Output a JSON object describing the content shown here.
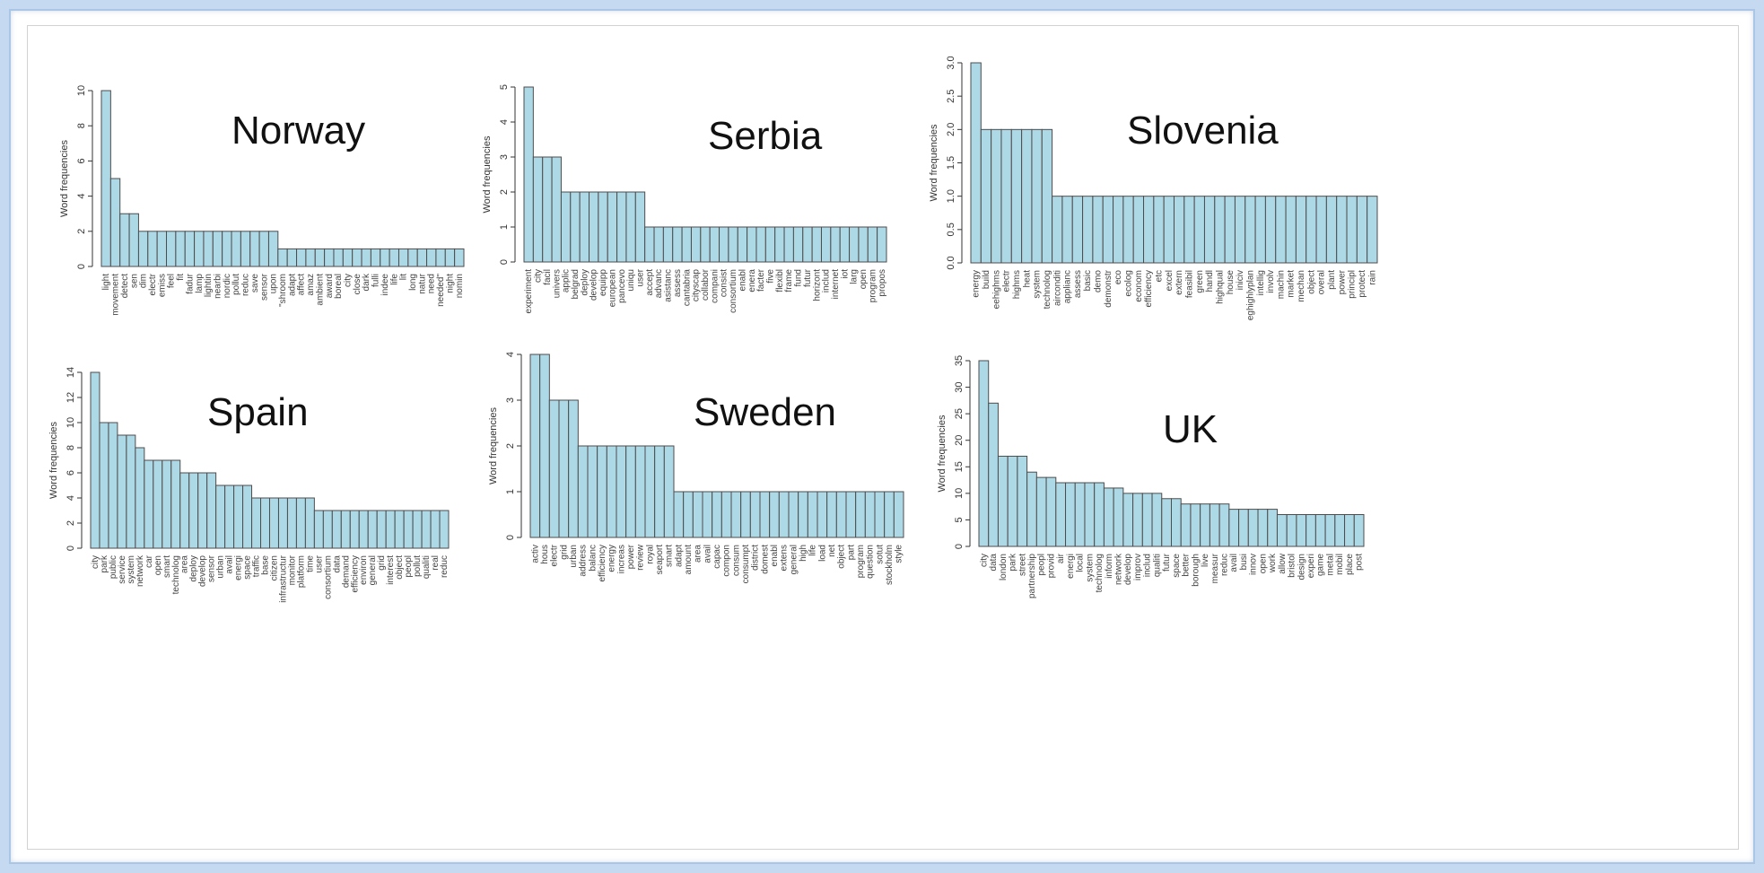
{
  "chart_data": [
    {
      "type": "bar",
      "title": "Norway",
      "ylabel": "Word frequencies",
      "yticks": [
        0,
        2,
        4,
        6,
        8,
        10
      ],
      "ylim": [
        0,
        10
      ],
      "categories": [
        "light",
        "movement",
        "detect",
        "sen",
        "dim",
        "electr",
        "emiss",
        "feel",
        "fit",
        "fadur",
        "lamp",
        "lightin",
        "nearbi",
        "nordic",
        "pollut",
        "reduc",
        "save",
        "sensor",
        "upon",
        "\"shroom",
        "adapt",
        "affect",
        "amaz",
        "ambient",
        "award",
        "boreal",
        "city",
        "close",
        "dark",
        "fulli",
        "indee",
        "life",
        "lit",
        "long",
        "natur",
        "need",
        "needed\"",
        "night",
        "nomin"
      ],
      "values": [
        10,
        5,
        3,
        3,
        2,
        2,
        2,
        2,
        2,
        2,
        2,
        2,
        2,
        2,
        2,
        2,
        2,
        2,
        2,
        1,
        1,
        1,
        1,
        1,
        1,
        1,
        1,
        1,
        1,
        1,
        1,
        1,
        1,
        1,
        1,
        1,
        1,
        1,
        1
      ]
    },
    {
      "type": "bar",
      "title": "Serbia",
      "ylabel": "Word frequencies",
      "yticks": [
        0,
        1,
        2,
        3,
        4,
        5
      ],
      "ylim": [
        0,
        5
      ],
      "categories": [
        "experiment",
        "city",
        "facil",
        "univers",
        "applic",
        "belgrad",
        "deploy",
        "develop",
        "equipp",
        "european",
        "pancevo",
        "uniqu",
        "user",
        "accept",
        "advanc",
        "asistanc",
        "assess",
        "cantabria",
        "cityscap",
        "collabor",
        "compani",
        "consist",
        "consortium",
        "enabl",
        "enera",
        "facter",
        "five",
        "flexibl",
        "frame",
        "fund",
        "futur",
        "horizont",
        "includ",
        "internet",
        "iot",
        "larg",
        "open",
        "program",
        "propos"
      ],
      "values": [
        5,
        3,
        3,
        3,
        2,
        2,
        2,
        2,
        2,
        2,
        2,
        2,
        2,
        1,
        1,
        1,
        1,
        1,
        1,
        1,
        1,
        1,
        1,
        1,
        1,
        1,
        1,
        1,
        1,
        1,
        1,
        1,
        1,
        1,
        1,
        1,
        1,
        1,
        1
      ]
    },
    {
      "type": "bar",
      "title": "Slovenia",
      "ylabel": "Word frequencies",
      "yticks": [
        "0.0",
        "0.5",
        "1.0",
        "1.5",
        "2.0",
        "2.5",
        "3.0"
      ],
      "ylim": [
        0,
        3
      ],
      "categories": [
        "energy",
        "build",
        "eehighms",
        "electr",
        "highms",
        "heat",
        "system",
        "technolog",
        "airconditi",
        "applianc",
        "assess",
        "basic",
        "demo",
        "demonstr",
        "eco",
        "ecolog",
        "econom",
        "efficiency",
        "etc",
        "excel",
        "extern",
        "feasibil",
        "green",
        "handl",
        "highqual",
        "house",
        "iniciv",
        "eghighlyplan",
        "intellig",
        "involv",
        "machin",
        "market",
        "mechan",
        "object",
        "overal",
        "plant",
        "power",
        "principl",
        "protect",
        "rain"
      ],
      "values": [
        3,
        2,
        2,
        2,
        2,
        2,
        2,
        2,
        1,
        1,
        1,
        1,
        1,
        1,
        1,
        1,
        1,
        1,
        1,
        1,
        1,
        1,
        1,
        1,
        1,
        1,
        1,
        1,
        1,
        1,
        1,
        1,
        1,
        1,
        1,
        1,
        1,
        1,
        1,
        1
      ]
    },
    {
      "type": "bar",
      "title": "Spain",
      "ylabel": "Word frequencies",
      "yticks": [
        0,
        2,
        4,
        6,
        8,
        10,
        12,
        14
      ],
      "ylim": [
        0,
        14
      ],
      "categories": [
        "city",
        "park",
        "public",
        "service",
        "system",
        "network",
        "car",
        "open",
        "smart",
        "technolog",
        "area",
        "deploy",
        "develop",
        "sensor",
        "urban",
        "avail",
        "energi",
        "space",
        "traffic",
        "base",
        "citizen",
        "infrastructur",
        "monitor",
        "platform",
        "time",
        "user",
        "consortium",
        "data",
        "demand",
        "efficiency",
        "environ",
        "general",
        "grid",
        "interest",
        "object",
        "peopl",
        "pollut",
        "qualiti",
        "real",
        "reduc"
      ],
      "values": [
        14,
        10,
        10,
        9,
        9,
        8,
        7,
        7,
        7,
        7,
        6,
        6,
        6,
        6,
        5,
        5,
        5,
        5,
        4,
        4,
        4,
        4,
        4,
        4,
        4,
        3,
        3,
        3,
        3,
        3,
        3,
        3,
        3,
        3,
        3,
        3,
        3,
        3,
        3,
        3
      ]
    },
    {
      "type": "bar",
      "title": "Sweden",
      "ylabel": "Word frequencies",
      "yticks": [
        0,
        1,
        2,
        3,
        4
      ],
      "ylim": [
        0,
        4
      ],
      "categories": [
        "activ",
        "hous",
        "electr",
        "grid",
        "urban",
        "address",
        "balanc",
        "efficiency",
        "energy",
        "increas",
        "power",
        "review",
        "royal",
        "seaport",
        "smart",
        "adapt",
        "amount",
        "area",
        "avail",
        "capac",
        "compon",
        "consum",
        "consumpt",
        "district",
        "domest",
        "enabl",
        "extens",
        "general",
        "high",
        "life",
        "load",
        "net",
        "object",
        "part",
        "program",
        "question",
        "sotut",
        "stockholm",
        "style"
      ],
      "values": [
        4,
        4,
        3,
        3,
        3,
        2,
        2,
        2,
        2,
        2,
        2,
        2,
        2,
        2,
        2,
        1,
        1,
        1,
        1,
        1,
        1,
        1,
        1,
        1,
        1,
        1,
        1,
        1,
        1,
        1,
        1,
        1,
        1,
        1,
        1,
        1,
        1,
        1,
        1
      ]
    },
    {
      "type": "bar",
      "title": "UK",
      "ylabel": "Word frequencies",
      "yticks": [
        0,
        5,
        10,
        15,
        20,
        25,
        30,
        35
      ],
      "ylim": [
        0,
        35
      ],
      "categories": [
        "city",
        "data",
        "london",
        "park",
        "street",
        "partnership",
        "peopl",
        "provid",
        "air",
        "energi",
        "local",
        "system",
        "technolog",
        "inform",
        "network",
        "develop",
        "improv",
        "includ",
        "qualiti",
        "futur",
        "space",
        "better",
        "borough",
        "live",
        "measur",
        "reduc",
        "avail",
        "busi",
        "innov",
        "open",
        "work",
        "allow",
        "bristol",
        "design",
        "experi",
        "game",
        "metal",
        "mobil",
        "place",
        "post"
      ],
      "values": [
        35,
        27,
        17,
        17,
        17,
        14,
        13,
        13,
        12,
        12,
        12,
        12,
        12,
        11,
        11,
        10,
        10,
        10,
        10,
        9,
        9,
        8,
        8,
        8,
        8,
        8,
        7,
        7,
        7,
        7,
        7,
        6,
        6,
        6,
        6,
        6,
        6,
        6,
        6,
        6
      ]
    }
  ]
}
